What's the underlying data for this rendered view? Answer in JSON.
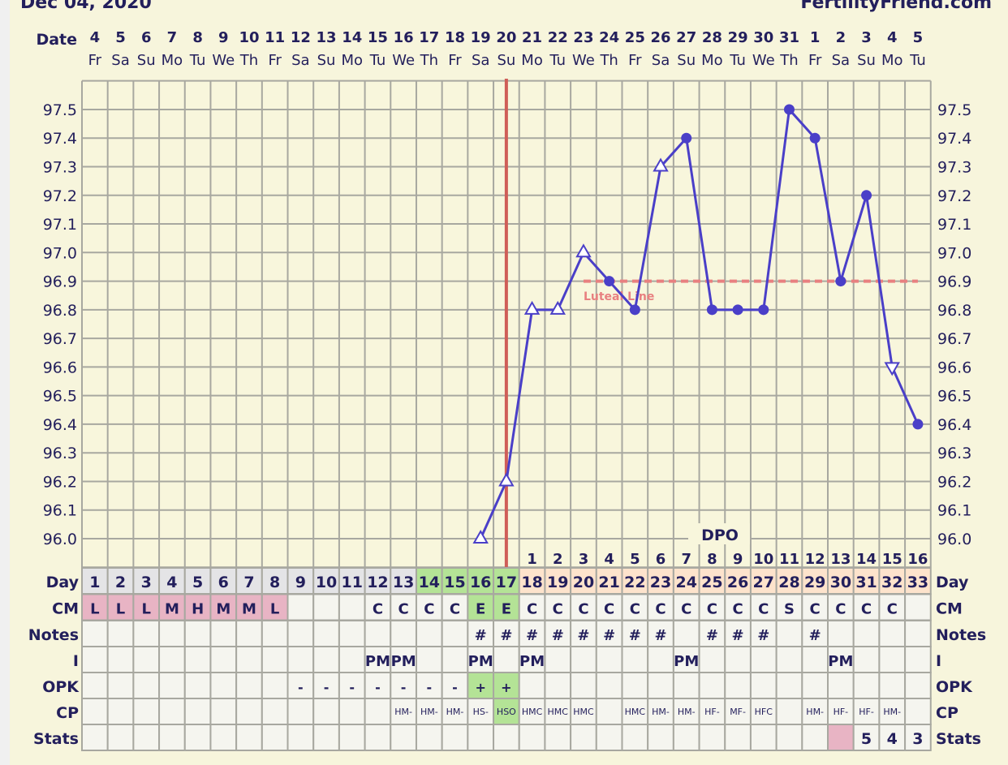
{
  "header": {
    "title": "Dec 04, 2020",
    "brand": "FertilityFriend.com"
  },
  "row_labels": {
    "date": "Date",
    "day": "Day",
    "cm": "CM",
    "notes": "Notes",
    "i": "I",
    "opk": "OPK",
    "cp": "CP",
    "stats": "Stats",
    "dpo": "DPO"
  },
  "colors": {
    "background": "#f7f5dc",
    "text": "#231f5c",
    "temp_line": "#4a3fc8",
    "grid": "#a8a8a0",
    "ovulation_line": "#cf5e58",
    "coverline": "#e88080",
    "cell": "#f5f5ef",
    "day_pre": "#e4e4e6",
    "day_fertile": "#b4e396",
    "day_luteal": "#fde3cc",
    "menses": "#e8b4c4"
  },
  "chart_data": {
    "type": "line",
    "ylim": [
      96.0,
      97.5
    ],
    "yticks": [
      "96.0",
      "96.1",
      "96.2",
      "96.3",
      "96.4",
      "96.5",
      "96.6",
      "96.7",
      "96.8",
      "96.9",
      "97.0",
      "97.1",
      "97.2",
      "97.3",
      "97.4",
      "97.5"
    ],
    "grid": true,
    "ovulation_day": 17,
    "coverline": {
      "label": "Luteal Line",
      "value": 96.9,
      "from_day": 20,
      "to_day": 33
    },
    "days": [
      {
        "date": "4",
        "wd": "Fr",
        "cd": "1",
        "cm": "L",
        "notes": "",
        "i": "",
        "opk": "",
        "cp": "",
        "stats": "",
        "temp": null,
        "marker": ""
      },
      {
        "date": "5",
        "wd": "Sa",
        "cd": "2",
        "cm": "L",
        "notes": "",
        "i": "",
        "opk": "",
        "cp": "",
        "stats": "",
        "temp": null,
        "marker": ""
      },
      {
        "date": "6",
        "wd": "Su",
        "cd": "3",
        "cm": "L",
        "notes": "",
        "i": "",
        "opk": "",
        "cp": "",
        "stats": "",
        "temp": null,
        "marker": ""
      },
      {
        "date": "7",
        "wd": "Mo",
        "cd": "4",
        "cm": "M",
        "notes": "",
        "i": "",
        "opk": "",
        "cp": "",
        "stats": "",
        "temp": null,
        "marker": ""
      },
      {
        "date": "8",
        "wd": "Tu",
        "cd": "5",
        "cm": "H",
        "notes": "",
        "i": "",
        "opk": "",
        "cp": "",
        "stats": "",
        "temp": null,
        "marker": ""
      },
      {
        "date": "9",
        "wd": "We",
        "cd": "6",
        "cm": "M",
        "notes": "",
        "i": "",
        "opk": "",
        "cp": "",
        "stats": "",
        "temp": null,
        "marker": ""
      },
      {
        "date": "10",
        "wd": "Th",
        "cd": "7",
        "cm": "M",
        "notes": "",
        "i": "",
        "opk": "",
        "cp": "",
        "stats": "",
        "temp": null,
        "marker": ""
      },
      {
        "date": "11",
        "wd": "Fr",
        "cd": "8",
        "cm": "L",
        "notes": "",
        "i": "",
        "opk": "",
        "cp": "",
        "stats": "",
        "temp": null,
        "marker": ""
      },
      {
        "date": "12",
        "wd": "Sa",
        "cd": "9",
        "cm": "",
        "notes": "",
        "i": "",
        "opk": "-",
        "cp": "",
        "stats": "",
        "temp": null,
        "marker": ""
      },
      {
        "date": "13",
        "wd": "Su",
        "cd": "10",
        "cm": "",
        "notes": "",
        "i": "",
        "opk": "-",
        "cp": "",
        "stats": "",
        "temp": null,
        "marker": ""
      },
      {
        "date": "14",
        "wd": "Mo",
        "cd": "11",
        "cm": "",
        "notes": "",
        "i": "",
        "opk": "-",
        "cp": "",
        "stats": "",
        "temp": null,
        "marker": ""
      },
      {
        "date": "15",
        "wd": "Tu",
        "cd": "12",
        "cm": "C",
        "notes": "",
        "i": "PM",
        "opk": "-",
        "cp": "",
        "stats": "",
        "temp": null,
        "marker": ""
      },
      {
        "date": "16",
        "wd": "We",
        "cd": "13",
        "cm": "C",
        "notes": "",
        "i": "PM",
        "opk": "-",
        "cp": "HM-",
        "stats": "",
        "temp": null,
        "marker": ""
      },
      {
        "date": "17",
        "wd": "Th",
        "cd": "14",
        "cm": "C",
        "notes": "",
        "i": "",
        "opk": "-",
        "cp": "HM-",
        "stats": "",
        "temp": null,
        "marker": ""
      },
      {
        "date": "18",
        "wd": "Fr",
        "cd": "15",
        "cm": "C",
        "notes": "",
        "i": "",
        "opk": "-",
        "cp": "HM-",
        "stats": "",
        "temp": null,
        "marker": ""
      },
      {
        "date": "19",
        "wd": "Sa",
        "cd": "16",
        "cm": "E",
        "notes": "#",
        "i": "PM",
        "opk": "+",
        "cp": "HS-",
        "stats": "",
        "temp": 96.0,
        "marker": "triangle"
      },
      {
        "date": "20",
        "wd": "Su",
        "cd": "17",
        "cm": "E",
        "notes": "#",
        "i": "",
        "opk": "+",
        "cp": "HSO",
        "stats": "",
        "temp": 96.2,
        "marker": "triangle"
      },
      {
        "date": "21",
        "wd": "Mo",
        "cd": "18",
        "cm": "C",
        "notes": "#",
        "i": "PM",
        "opk": "",
        "cp": "HMC",
        "stats": "",
        "temp": 96.8,
        "marker": "triangle",
        "dpo": "1"
      },
      {
        "date": "22",
        "wd": "Tu",
        "cd": "19",
        "cm": "C",
        "notes": "#",
        "i": "",
        "opk": "",
        "cp": "HMC",
        "stats": "",
        "temp": 96.8,
        "marker": "triangle",
        "dpo": "2"
      },
      {
        "date": "23",
        "wd": "We",
        "cd": "20",
        "cm": "C",
        "notes": "#",
        "i": "",
        "opk": "",
        "cp": "HMC",
        "stats": "",
        "temp": 97.0,
        "marker": "triangle",
        "dpo": "3"
      },
      {
        "date": "24",
        "wd": "Th",
        "cd": "21",
        "cm": "C",
        "notes": "#",
        "i": "",
        "opk": "",
        "cp": "",
        "stats": "",
        "temp": 96.9,
        "marker": "dot",
        "dpo": "4"
      },
      {
        "date": "25",
        "wd": "Fr",
        "cd": "22",
        "cm": "C",
        "notes": "#",
        "i": "",
        "opk": "",
        "cp": "HMC",
        "stats": "",
        "temp": 96.8,
        "marker": "dot",
        "dpo": "5"
      },
      {
        "date": "26",
        "wd": "Sa",
        "cd": "23",
        "cm": "C",
        "notes": "#",
        "i": "",
        "opk": "",
        "cp": "HM-",
        "stats": "",
        "temp": 97.3,
        "marker": "triangle",
        "dpo": "6"
      },
      {
        "date": "27",
        "wd": "Su",
        "cd": "24",
        "cm": "C",
        "notes": "",
        "i": "PM",
        "opk": "",
        "cp": "HM-",
        "stats": "",
        "temp": 97.4,
        "marker": "dot",
        "dpo": "7"
      },
      {
        "date": "28",
        "wd": "Mo",
        "cd": "25",
        "cm": "C",
        "notes": "#",
        "i": "",
        "opk": "",
        "cp": "HF-",
        "stats": "",
        "temp": 96.8,
        "marker": "dot",
        "dpo": "8"
      },
      {
        "date": "29",
        "wd": "Tu",
        "cd": "26",
        "cm": "C",
        "notes": "#",
        "i": "",
        "opk": "",
        "cp": "MF-",
        "stats": "",
        "temp": 96.8,
        "marker": "dot",
        "dpo": "9"
      },
      {
        "date": "30",
        "wd": "We",
        "cd": "27",
        "cm": "C",
        "notes": "#",
        "i": "",
        "opk": "",
        "cp": "HFC",
        "stats": "",
        "temp": 96.8,
        "marker": "dot",
        "dpo": "10"
      },
      {
        "date": "31",
        "wd": "Th",
        "cd": "28",
        "cm": "S",
        "notes": "",
        "i": "",
        "opk": "",
        "cp": "",
        "stats": "",
        "temp": 97.5,
        "marker": "dot",
        "dpo": "11"
      },
      {
        "date": "1",
        "wd": "Fr",
        "cd": "29",
        "cm": "C",
        "notes": "#",
        "i": "",
        "opk": "",
        "cp": "HM-",
        "stats": "",
        "temp": 97.4,
        "marker": "dot",
        "dpo": "12"
      },
      {
        "date": "2",
        "wd": "Sa",
        "cd": "30",
        "cm": "C",
        "notes": "",
        "i": "PM",
        "opk": "",
        "cp": "HF-",
        "stats": "",
        "stats_pink": true,
        "temp": 96.9,
        "marker": "dot",
        "dpo": "13"
      },
      {
        "date": "3",
        "wd": "Su",
        "cd": "31",
        "cm": "C",
        "notes": "",
        "i": "",
        "opk": "",
        "cp": "HF-",
        "stats": "5",
        "temp": 97.2,
        "marker": "dot",
        "dpo": "14"
      },
      {
        "date": "4",
        "wd": "Mo",
        "cd": "32",
        "cm": "C",
        "notes": "",
        "i": "",
        "opk": "",
        "cp": "HM-",
        "stats": "4",
        "temp": 96.6,
        "marker": "triangle-down",
        "dpo": "15"
      },
      {
        "date": "5",
        "wd": "Tu",
        "cd": "33",
        "cm": "",
        "notes": "",
        "i": "",
        "opk": "",
        "cp": "",
        "stats": "3",
        "temp": 96.4,
        "marker": "dot",
        "dpo": "16"
      }
    ]
  }
}
